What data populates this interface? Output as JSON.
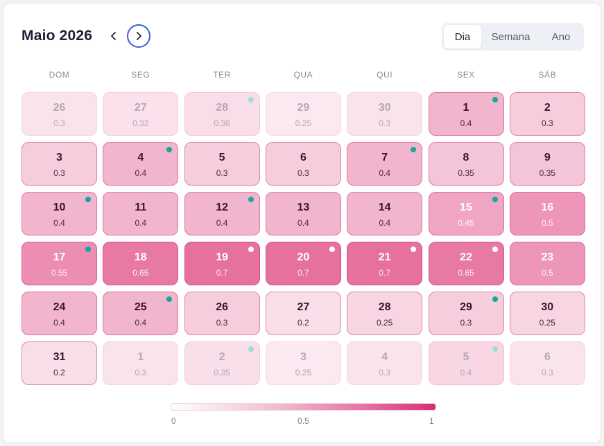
{
  "header": {
    "title": "Maio 2026",
    "views": [
      "Dia",
      "Semana",
      "Ano"
    ],
    "active_view": "Dia"
  },
  "icons": {
    "prev": "chevron-left-icon",
    "next": "chevron-right-icon"
  },
  "colors": {
    "accent": "#3b5fd0",
    "dot_teal": "#16a898",
    "dot_white": "#ffffff"
  },
  "weekdays": [
    "DOM",
    "SEG",
    "TER",
    "QUA",
    "QUI",
    "SEX",
    "SÁB"
  ],
  "days": [
    {
      "day": "26",
      "value": "0.3",
      "v": 0.3,
      "outside": true,
      "dot": null
    },
    {
      "day": "27",
      "value": "0.32",
      "v": 0.32,
      "outside": true,
      "dot": null
    },
    {
      "day": "28",
      "value": "0.36",
      "v": 0.36,
      "outside": true,
      "dot": "light"
    },
    {
      "day": "29",
      "value": "0.25",
      "v": 0.25,
      "outside": true,
      "dot": null
    },
    {
      "day": "30",
      "value": "0.3",
      "v": 0.3,
      "outside": true,
      "dot": null
    },
    {
      "day": "1",
      "value": "0.4",
      "v": 0.4,
      "outside": false,
      "dot": "teal"
    },
    {
      "day": "2",
      "value": "0.3",
      "v": 0.3,
      "outside": false,
      "dot": null
    },
    {
      "day": "3",
      "value": "0.3",
      "v": 0.3,
      "outside": false,
      "dot": null
    },
    {
      "day": "4",
      "value": "0.4",
      "v": 0.4,
      "outside": false,
      "dot": "teal"
    },
    {
      "day": "5",
      "value": "0.3",
      "v": 0.3,
      "outside": false,
      "dot": null
    },
    {
      "day": "6",
      "value": "0.3",
      "v": 0.3,
      "outside": false,
      "dot": null
    },
    {
      "day": "7",
      "value": "0.4",
      "v": 0.4,
      "outside": false,
      "dot": "teal"
    },
    {
      "day": "8",
      "value": "0.35",
      "v": 0.35,
      "outside": false,
      "dot": null
    },
    {
      "day": "9",
      "value": "0.35",
      "v": 0.35,
      "outside": false,
      "dot": null
    },
    {
      "day": "10",
      "value": "0.4",
      "v": 0.4,
      "outside": false,
      "dot": "teal"
    },
    {
      "day": "11",
      "value": "0.4",
      "v": 0.4,
      "outside": false,
      "dot": null
    },
    {
      "day": "12",
      "value": "0.4",
      "v": 0.4,
      "outside": false,
      "dot": "teal"
    },
    {
      "day": "13",
      "value": "0.4",
      "v": 0.4,
      "outside": false,
      "dot": null
    },
    {
      "day": "14",
      "value": "0.4",
      "v": 0.4,
      "outside": false,
      "dot": null
    },
    {
      "day": "15",
      "value": "0.45",
      "v": 0.45,
      "outside": false,
      "dot": "teal"
    },
    {
      "day": "16",
      "value": "0.5",
      "v": 0.5,
      "outside": false,
      "dot": null
    },
    {
      "day": "17",
      "value": "0.55",
      "v": 0.55,
      "outside": false,
      "dot": "teal"
    },
    {
      "day": "18",
      "value": "0.65",
      "v": 0.65,
      "outside": false,
      "dot": null
    },
    {
      "day": "19",
      "value": "0.7",
      "v": 0.7,
      "outside": false,
      "dot": "white"
    },
    {
      "day": "20",
      "value": "0.7",
      "v": 0.7,
      "outside": false,
      "dot": "white"
    },
    {
      "day": "21",
      "value": "0.7",
      "v": 0.7,
      "outside": false,
      "dot": "white"
    },
    {
      "day": "22",
      "value": "0.65",
      "v": 0.65,
      "outside": false,
      "dot": "white"
    },
    {
      "day": "23",
      "value": "0.5",
      "v": 0.5,
      "outside": false,
      "dot": null
    },
    {
      "day": "24",
      "value": "0.4",
      "v": 0.4,
      "outside": false,
      "dot": null
    },
    {
      "day": "25",
      "value": "0.4",
      "v": 0.4,
      "outside": false,
      "dot": "teal"
    },
    {
      "day": "26",
      "value": "0.3",
      "v": 0.3,
      "outside": false,
      "dot": null
    },
    {
      "day": "27",
      "value": "0.2",
      "v": 0.2,
      "outside": false,
      "dot": null
    },
    {
      "day": "28",
      "value": "0.25",
      "v": 0.25,
      "outside": false,
      "dot": null
    },
    {
      "day": "29",
      "value": "0.3",
      "v": 0.3,
      "outside": false,
      "dot": "teal"
    },
    {
      "day": "30",
      "value": "0.25",
      "v": 0.25,
      "outside": false,
      "dot": null
    },
    {
      "day": "31",
      "value": "0.2",
      "v": 0.2,
      "outside": false,
      "dot": null
    },
    {
      "day": "1",
      "value": "0.3",
      "v": 0.3,
      "outside": true,
      "dot": null
    },
    {
      "day": "2",
      "value": "0.35",
      "v": 0.35,
      "outside": true,
      "dot": "light"
    },
    {
      "day": "3",
      "value": "0.25",
      "v": 0.25,
      "outside": true,
      "dot": null
    },
    {
      "day": "4",
      "value": "0.3",
      "v": 0.3,
      "outside": true,
      "dot": null
    },
    {
      "day": "5",
      "value": "0.4",
      "v": 0.4,
      "outside": true,
      "dot": "light"
    },
    {
      "day": "6",
      "value": "0.3",
      "v": 0.3,
      "outside": true,
      "dot": null
    }
  ],
  "legend": {
    "ticks": [
      "0",
      "0.5",
      "1"
    ]
  }
}
